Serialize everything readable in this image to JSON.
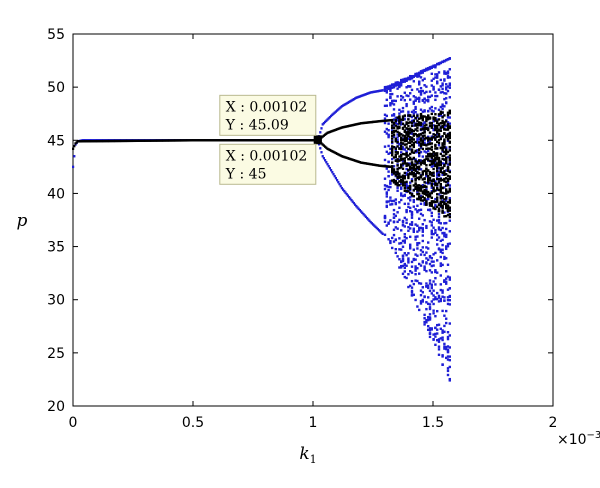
{
  "chart_data": {
    "type": "scatter",
    "title": "",
    "xlabel": "k",
    "xlabel_subscript": "1",
    "ylabel": "p",
    "x_exponent_label": "×10",
    "x_exponent_power": "−3",
    "xlim": [
      0,
      2
    ],
    "ylim": [
      20,
      55
    ],
    "xticks": [
      0,
      0.5,
      1,
      1.5,
      2
    ],
    "xtick_labels": [
      "0",
      "0.5",
      "1",
      "1.5",
      "2"
    ],
    "yticks": [
      20,
      25,
      30,
      35,
      40,
      45,
      50,
      55
    ],
    "ytick_labels": [
      "20",
      "25",
      "30",
      "35",
      "40",
      "45",
      "50",
      "55"
    ],
    "grid": false,
    "colors": {
      "series_blue": "#1f1fd6",
      "series_black": "#000000",
      "tip_bg": "#fbfbe3",
      "tip_border": "#b9b98f"
    },
    "series": [
      {
        "color": "blue",
        "segments": [
          {
            "kind": "branch",
            "x": [
              0,
              0.005,
              0.01,
              0.02,
              0.04,
              0.1,
              0.5,
              1.02
            ],
            "y": [
              42.5,
              43.5,
              44.6,
              44.9,
              45.0,
              45.0,
              45.0,
              45.0
            ]
          },
          {
            "kind": "branch",
            "x": [
              1.02,
              1.04,
              1.08,
              1.12,
              1.18,
              1.24,
              1.29
            ],
            "y": [
              45.0,
              46.5,
              47.4,
              48.2,
              49.0,
              49.5,
              49.7
            ]
          },
          {
            "kind": "branch",
            "x": [
              1.02,
              1.04,
              1.08,
              1.12,
              1.18,
              1.24,
              1.29
            ],
            "y": [
              45.0,
              43.5,
              42.0,
              40.5,
              38.8,
              37.3,
              36.2
            ]
          },
          {
            "kind": "band",
            "x": [
              1.3,
              1.57
            ],
            "lower": [
              49.5,
              52.7
            ],
            "upper": [
              50.0,
              52.7
            ],
            "top": [
              49.8,
              52.6
            ]
          },
          {
            "kind": "band",
            "x": [
              1.3,
              1.57
            ],
            "lower": [
              36.0,
              22.3
            ],
            "upper": [
              49.8,
              52.6
            ]
          }
        ]
      },
      {
        "color": "black",
        "segments": [
          {
            "kind": "branch",
            "x": [
              0,
              0.01,
              0.02,
              0.5,
              1.02
            ],
            "y": [
              44.2,
              44.7,
              44.9,
              45.0,
              45.0
            ]
          },
          {
            "kind": "branch",
            "x": [
              1.02,
              1.06,
              1.12,
              1.2,
              1.28,
              1.33
            ],
            "y": [
              45.0,
              45.7,
              46.2,
              46.6,
              46.8,
              46.9
            ]
          },
          {
            "kind": "branch",
            "x": [
              1.02,
              1.06,
              1.12,
              1.2,
              1.28,
              1.33
            ],
            "y": [
              45.0,
              44.2,
              43.5,
              42.9,
              42.6,
              42.5
            ]
          },
          {
            "kind": "band",
            "x": [
              1.33,
              1.57
            ],
            "lower": [
              41.0,
              37.5
            ],
            "upper": [
              47.2,
              47.8
            ]
          }
        ]
      }
    ],
    "annotations": [
      {
        "x_text": "X : 0.00102",
        "y_text": "Y : 45.09",
        "x": 1.02,
        "y": 45.09,
        "anchor": "above-left"
      },
      {
        "x_text": "X : 0.00102",
        "y_text": "Y : 45",
        "x": 1.02,
        "y": 45.0,
        "anchor": "below-left"
      }
    ]
  }
}
